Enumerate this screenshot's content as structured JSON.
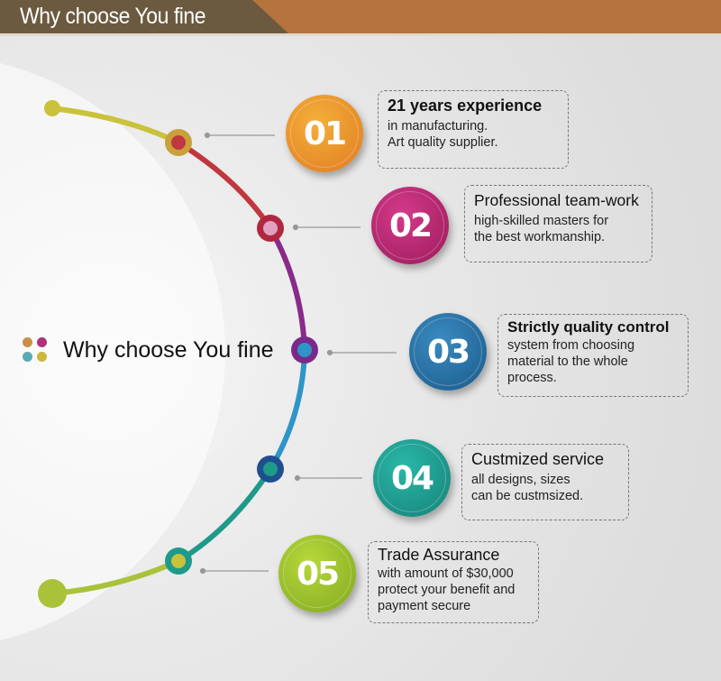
{
  "header": {
    "title": "Why choose You fine",
    "colors": {
      "dark": "#6b5a3f",
      "accent": "#b5733d"
    }
  },
  "center_label": "Why choose You fine",
  "items": [
    {
      "number": "01",
      "title": "21 years experience",
      "lines": [
        "in manufacturing.",
        "Art quality supplier."
      ],
      "color": "#e7922b"
    },
    {
      "number": "02",
      "title": "Professional team-work",
      "lines": [
        "high-skilled masters for",
        "the best workmanship."
      ],
      "color": "#b0206a"
    },
    {
      "number": "03",
      "title": "Strictly quality control",
      "lines": [
        "system from choosing",
        "material to the whole",
        "process."
      ],
      "color": "#1f6f9e"
    },
    {
      "number": "04",
      "title": "Custmized service",
      "lines": [
        "all designs, sizes",
        "can be custmsized."
      ],
      "color": "#1c9a93"
    },
    {
      "number": "05",
      "title": "Trade Assurance",
      "lines": [
        "with amount of $30,000",
        "protect your benefit and",
        "payment secure"
      ],
      "color": "#9cbd2c"
    }
  ]
}
